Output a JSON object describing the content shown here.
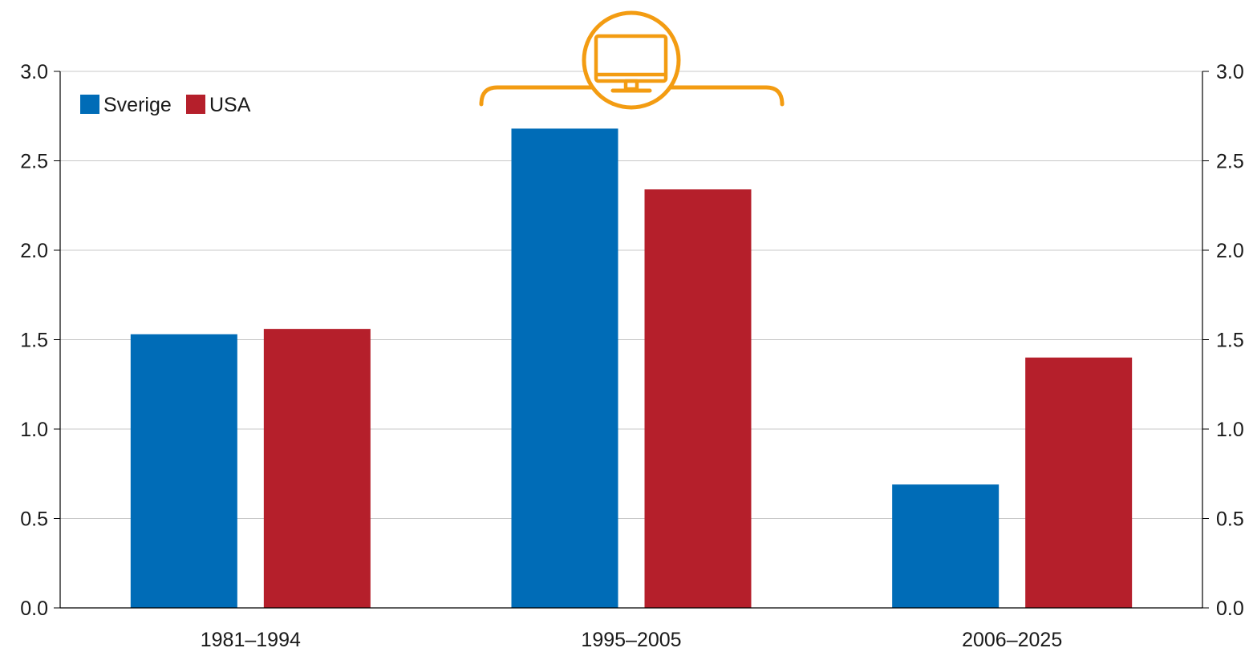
{
  "chart_data": {
    "type": "bar",
    "categories": [
      "1981–1994",
      "1995–2005",
      "2006–2025"
    ],
    "series": [
      {
        "name": "Sverige",
        "color": "#006cb7",
        "values": [
          1.53,
          2.68,
          0.69
        ]
      },
      {
        "name": "USA",
        "color": "#b51f2b",
        "values": [
          1.56,
          2.34,
          1.4
        ]
      }
    ],
    "ylim": [
      0,
      3
    ],
    "yticks": [
      "0.0",
      "0.5",
      "1.0",
      "1.5",
      "2.0",
      "2.5",
      "3.0"
    ],
    "ytick_values": [
      0,
      0.5,
      1,
      1.5,
      2,
      2.5,
      3
    ],
    "grid": true,
    "dual_y_axis": true,
    "legend_position": "top-left",
    "annotation": {
      "icon": "computer-monitor-icon",
      "spans_category": "1995–2005",
      "color": "#f39c12"
    }
  }
}
